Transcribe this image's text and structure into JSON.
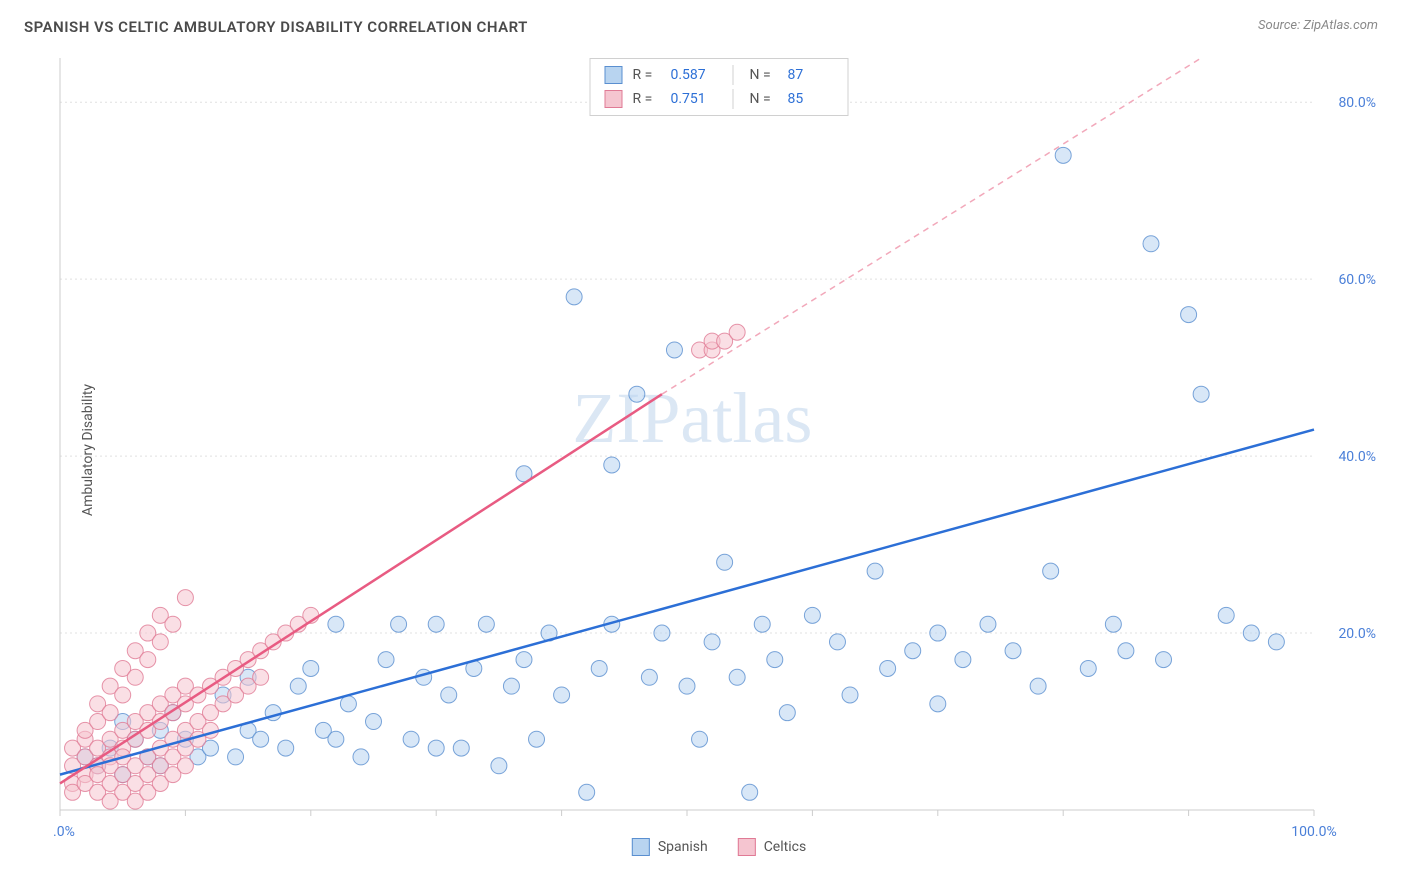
{
  "title": "SPANISH VS CELTIC AMBULATORY DISABILITY CORRELATION CHART",
  "source": "Source: ZipAtlas.com",
  "watermark": "ZIPatlas",
  "ylabel": "Ambulatory Disability",
  "chart": {
    "type": "scatter",
    "xlim": [
      0,
      100
    ],
    "ylim": [
      0,
      85
    ],
    "x_ticks": [
      0,
      100
    ],
    "x_tick_labels": [
      "0.0%",
      "100.0%"
    ],
    "y_ticks": [
      20,
      40,
      60,
      80
    ],
    "y_tick_labels": [
      "20.0%",
      "40.0%",
      "60.0%",
      "80.0%"
    ],
    "x_minor_step": 10,
    "background_color": "#ffffff",
    "grid_color": "#e0e0e0",
    "marker_radius": 8,
    "series": [
      {
        "name": "Spanish",
        "color_fill": "#b8d4f0",
        "color_stroke": "#5a8fd0",
        "trend_color": "#2c6fd6",
        "r": 0.587,
        "n": 87,
        "trend": {
          "x1": 0,
          "y1": 4,
          "x2": 100,
          "y2": 43
        },
        "points": [
          [
            2,
            6
          ],
          [
            3,
            5
          ],
          [
            4,
            7
          ],
          [
            5,
            4
          ],
          [
            5,
            10
          ],
          [
            6,
            8
          ],
          [
            7,
            6
          ],
          [
            8,
            5
          ],
          [
            8,
            9
          ],
          [
            9,
            11
          ],
          [
            10,
            8
          ],
          [
            11,
            6
          ],
          [
            12,
            7
          ],
          [
            13,
            13
          ],
          [
            14,
            6
          ],
          [
            15,
            9
          ],
          [
            15,
            15
          ],
          [
            16,
            8
          ],
          [
            17,
            11
          ],
          [
            18,
            7
          ],
          [
            19,
            14
          ],
          [
            20,
            16
          ],
          [
            21,
            9
          ],
          [
            22,
            8
          ],
          [
            22,
            21
          ],
          [
            23,
            12
          ],
          [
            24,
            6
          ],
          [
            25,
            10
          ],
          [
            26,
            17
          ],
          [
            27,
            21
          ],
          [
            28,
            8
          ],
          [
            29,
            15
          ],
          [
            30,
            7
          ],
          [
            30,
            21
          ],
          [
            31,
            13
          ],
          [
            32,
            7
          ],
          [
            33,
            16
          ],
          [
            34,
            21
          ],
          [
            35,
            5
          ],
          [
            36,
            14
          ],
          [
            37,
            17
          ],
          [
            37,
            38
          ],
          [
            38,
            8
          ],
          [
            39,
            20
          ],
          [
            40,
            13
          ],
          [
            41,
            58
          ],
          [
            42,
            2
          ],
          [
            43,
            16
          ],
          [
            44,
            21
          ],
          [
            44,
            39
          ],
          [
            46,
            47
          ],
          [
            47,
            15
          ],
          [
            48,
            20
          ],
          [
            49,
            52
          ],
          [
            50,
            14
          ],
          [
            51,
            8
          ],
          [
            52,
            19
          ],
          [
            53,
            28
          ],
          [
            54,
            15
          ],
          [
            55,
            2
          ],
          [
            56,
            21
          ],
          [
            57,
            17
          ],
          [
            58,
            11
          ],
          [
            60,
            22
          ],
          [
            62,
            19
          ],
          [
            63,
            13
          ],
          [
            65,
            27
          ],
          [
            66,
            16
          ],
          [
            68,
            18
          ],
          [
            70,
            20
          ],
          [
            70,
            12
          ],
          [
            72,
            17
          ],
          [
            74,
            21
          ],
          [
            76,
            18
          ],
          [
            78,
            14
          ],
          [
            79,
            27
          ],
          [
            80,
            74
          ],
          [
            82,
            16
          ],
          [
            84,
            21
          ],
          [
            85,
            18
          ],
          [
            87,
            64
          ],
          [
            88,
            17
          ],
          [
            90,
            56
          ],
          [
            91,
            47
          ],
          [
            93,
            22
          ],
          [
            95,
            20
          ],
          [
            97,
            19
          ]
        ]
      },
      {
        "name": "Celtics",
        "color_fill": "#f5c5d0",
        "color_stroke": "#e07a95",
        "trend_color": "#e85b82",
        "r": 0.751,
        "n": 85,
        "trend_solid": {
          "x1": 0,
          "y1": 3,
          "x2": 48,
          "y2": 47
        },
        "trend_dash": {
          "x1": 48,
          "y1": 47,
          "x2": 91,
          "y2": 85
        },
        "points": [
          [
            1,
            3
          ],
          [
            1,
            5
          ],
          [
            1,
            7
          ],
          [
            1,
            2
          ],
          [
            2,
            4
          ],
          [
            2,
            6
          ],
          [
            2,
            8
          ],
          [
            2,
            3
          ],
          [
            2,
            9
          ],
          [
            3,
            5
          ],
          [
            3,
            7
          ],
          [
            3,
            2
          ],
          [
            3,
            10
          ],
          [
            3,
            4
          ],
          [
            3,
            12
          ],
          [
            4,
            6
          ],
          [
            4,
            8
          ],
          [
            4,
            3
          ],
          [
            4,
            11
          ],
          [
            4,
            5
          ],
          [
            4,
            14
          ],
          [
            4,
            1
          ],
          [
            5,
            7
          ],
          [
            5,
            9
          ],
          [
            5,
            4
          ],
          [
            5,
            13
          ],
          [
            5,
            6
          ],
          [
            5,
            16
          ],
          [
            5,
            2
          ],
          [
            6,
            8
          ],
          [
            6,
            10
          ],
          [
            6,
            5
          ],
          [
            6,
            15
          ],
          [
            6,
            3
          ],
          [
            6,
            18
          ],
          [
            6,
            1
          ],
          [
            7,
            9
          ],
          [
            7,
            11
          ],
          [
            7,
            6
          ],
          [
            7,
            17
          ],
          [
            7,
            4
          ],
          [
            7,
            20
          ],
          [
            7,
            2
          ],
          [
            8,
            10
          ],
          [
            8,
            12
          ],
          [
            8,
            7
          ],
          [
            8,
            19
          ],
          [
            8,
            5
          ],
          [
            8,
            22
          ],
          [
            8,
            3
          ],
          [
            9,
            11
          ],
          [
            9,
            13
          ],
          [
            9,
            8
          ],
          [
            9,
            21
          ],
          [
            9,
            6
          ],
          [
            9,
            4
          ],
          [
            10,
            12
          ],
          [
            10,
            14
          ],
          [
            10,
            9
          ],
          [
            10,
            24
          ],
          [
            10,
            7
          ],
          [
            10,
            5
          ],
          [
            11,
            13
          ],
          [
            11,
            10
          ],
          [
            11,
            8
          ],
          [
            12,
            14
          ],
          [
            12,
            11
          ],
          [
            12,
            9
          ],
          [
            13,
            15
          ],
          [
            13,
            12
          ],
          [
            14,
            16
          ],
          [
            14,
            13
          ],
          [
            15,
            17
          ],
          [
            15,
            14
          ],
          [
            16,
            18
          ],
          [
            16,
            15
          ],
          [
            17,
            19
          ],
          [
            18,
            20
          ],
          [
            19,
            21
          ],
          [
            20,
            22
          ],
          [
            51,
            52
          ],
          [
            52,
            52
          ],
          [
            52,
            53
          ],
          [
            53,
            53
          ],
          [
            54,
            54
          ]
        ]
      }
    ]
  },
  "stats_box": {
    "rows": [
      {
        "swatch": "blue",
        "r_label": "R =",
        "r": "0.587",
        "n_label": "N =",
        "n": "87"
      },
      {
        "swatch": "pink",
        "r_label": "R =",
        "r": "0.751",
        "n_label": "N =",
        "n": "85"
      }
    ]
  },
  "x_legend": [
    {
      "swatch": "blue",
      "label": "Spanish"
    },
    {
      "swatch": "pink",
      "label": "Celtics"
    }
  ]
}
